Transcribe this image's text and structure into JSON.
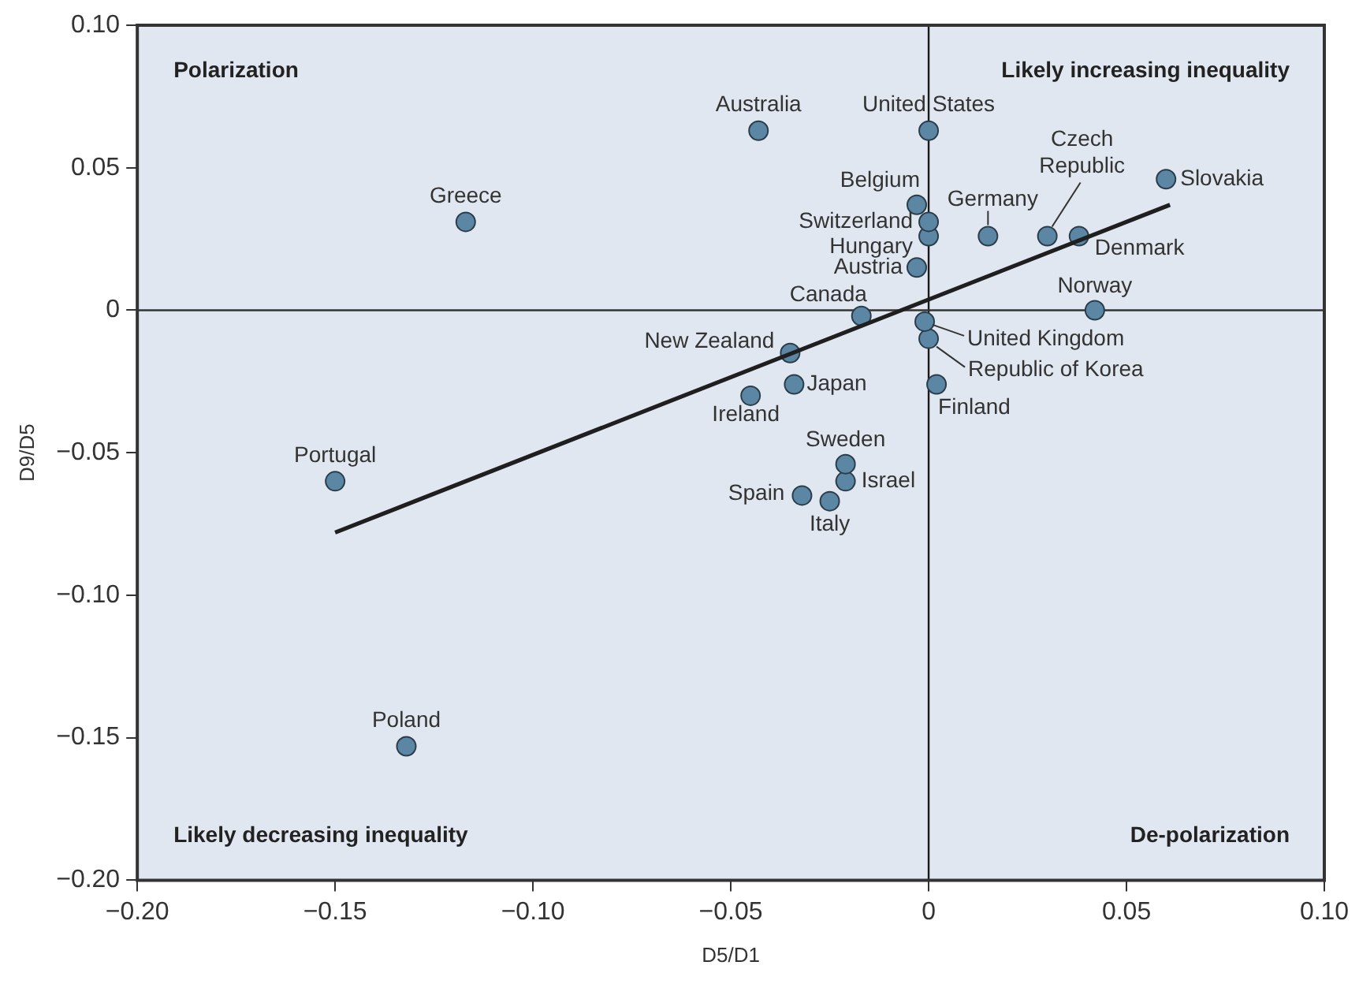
{
  "chart_data": {
    "type": "scatter",
    "xlabel": "D5/D1",
    "ylabel": "D9/D5",
    "xlim": [
      -0.2,
      0.1
    ],
    "ylim": [
      -0.2,
      0.1
    ],
    "xticks": [
      {
        "value": -0.2,
        "label": "−0.20"
      },
      {
        "value": -0.15,
        "label": "−0.15"
      },
      {
        "value": -0.1,
        "label": "−0.10"
      },
      {
        "value": -0.05,
        "label": "−0.05"
      },
      0,
      {
        "value": 0.05,
        "label": "0.05"
      },
      {
        "value": 0.1,
        "label": "0.10"
      }
    ],
    "yticks": [
      {
        "value": -0.2,
        "label": "−0.20"
      },
      {
        "value": -0.15,
        "label": "−0.15"
      },
      {
        "value": -0.1,
        "label": "−0.10"
      },
      {
        "value": -0.05,
        "label": "−0.05"
      },
      0,
      {
        "value": 0.05,
        "label": "0.05"
      },
      {
        "value": 0.1,
        "label": "0.10"
      }
    ],
    "grid": false,
    "legend": false,
    "marker": "circle",
    "ref_lines": [
      {
        "axis": "x",
        "value": 0,
        "color": "#1a1a1a"
      },
      {
        "axis": "y",
        "value": 0,
        "color": "#333333"
      }
    ],
    "annotations": [
      "Polarization",
      "Likely increasing inequality",
      "Likely decreasing inequality",
      "De-polarization"
    ],
    "series": [
      {
        "name": "Greece",
        "color": "#5b87a4",
        "x": [
          -0.117
        ],
        "values": [
          0.031
        ]
      },
      {
        "name": "Portugal",
        "color": "#5b87a4",
        "x": [
          -0.15
        ],
        "values": [
          -0.06
        ]
      },
      {
        "name": "Poland",
        "color": "#5b87a4",
        "x": [
          -0.132
        ],
        "values": [
          -0.153
        ]
      },
      {
        "name": "Australia",
        "color": "#5b87a4",
        "x": [
          -0.043
        ],
        "values": [
          0.063
        ]
      },
      {
        "name": "United States",
        "color": "#5b87a4",
        "x": [
          0
        ],
        "values": [
          0.063
        ]
      },
      {
        "name": "Belgium",
        "color": "#5b87a4",
        "x": [
          -0.003
        ],
        "values": [
          0.037
        ]
      },
      {
        "name": "Switzerland",
        "color": "#5b87a4",
        "x": [
          0
        ],
        "values": [
          0.031
        ]
      },
      {
        "name": "Hungary",
        "color": "#5b87a4",
        "x": [
          0
        ],
        "values": [
          0.026
        ]
      },
      {
        "name": "Austria",
        "color": "#5b87a4",
        "x": [
          -0.003
        ],
        "values": [
          0.015
        ]
      },
      {
        "name": "Germany",
        "color": "#5b87a4",
        "x": [
          0.015
        ],
        "values": [
          0.026
        ]
      },
      {
        "name": "Czech Republic",
        "color": "#5b87a4",
        "x": [
          0.03
        ],
        "values": [
          0.026
        ]
      },
      {
        "name": "Denmark",
        "color": "#5b87a4",
        "x": [
          0.038
        ],
        "values": [
          0.026
        ]
      },
      {
        "name": "Slovakia",
        "color": "#5b87a4",
        "x": [
          0.06
        ],
        "values": [
          0.046
        ]
      },
      {
        "name": "Canada",
        "color": "#5b87a4",
        "x": [
          -0.017
        ],
        "values": [
          -0.002
        ]
      },
      {
        "name": "Norway",
        "color": "#5b87a4",
        "x": [
          0.042
        ],
        "values": [
          0
        ]
      },
      {
        "name": "United Kingdom",
        "color": "#5b87a4",
        "x": [
          -0.001
        ],
        "values": [
          -0.004
        ]
      },
      {
        "name": "Republic of Korea",
        "color": "#5b87a4",
        "x": [
          0
        ],
        "values": [
          -0.01
        ]
      },
      {
        "name": "Finland",
        "color": "#5b87a4",
        "x": [
          0.002
        ],
        "values": [
          -0.026
        ]
      },
      {
        "name": "New Zealand",
        "color": "#5b87a4",
        "x": [
          -0.035
        ],
        "values": [
          -0.015
        ]
      },
      {
        "name": "Japan",
        "color": "#5b87a4",
        "x": [
          -0.034
        ],
        "values": [
          -0.026
        ]
      },
      {
        "name": "Ireland",
        "color": "#5b87a4",
        "x": [
          -0.045
        ],
        "values": [
          -0.03
        ]
      },
      {
        "name": "Sweden",
        "color": "#5b87a4",
        "x": [
          -0.021
        ],
        "values": [
          -0.054
        ]
      },
      {
        "name": "Israel",
        "color": "#5b87a4",
        "x": [
          -0.021
        ],
        "values": [
          -0.06
        ]
      },
      {
        "name": "Spain",
        "color": "#5b87a4",
        "x": [
          -0.032
        ],
        "values": [
          -0.065
        ]
      },
      {
        "name": "Italy",
        "color": "#5b87a4",
        "x": [
          -0.025
        ],
        "values": [
          -0.067
        ]
      },
      {
        "type": "line",
        "marker": "none",
        "color": "#1f1f1f",
        "x": [
          -0.15,
          0.061
        ],
        "values": [
          -0.078,
          0.037
        ]
      }
    ]
  }
}
